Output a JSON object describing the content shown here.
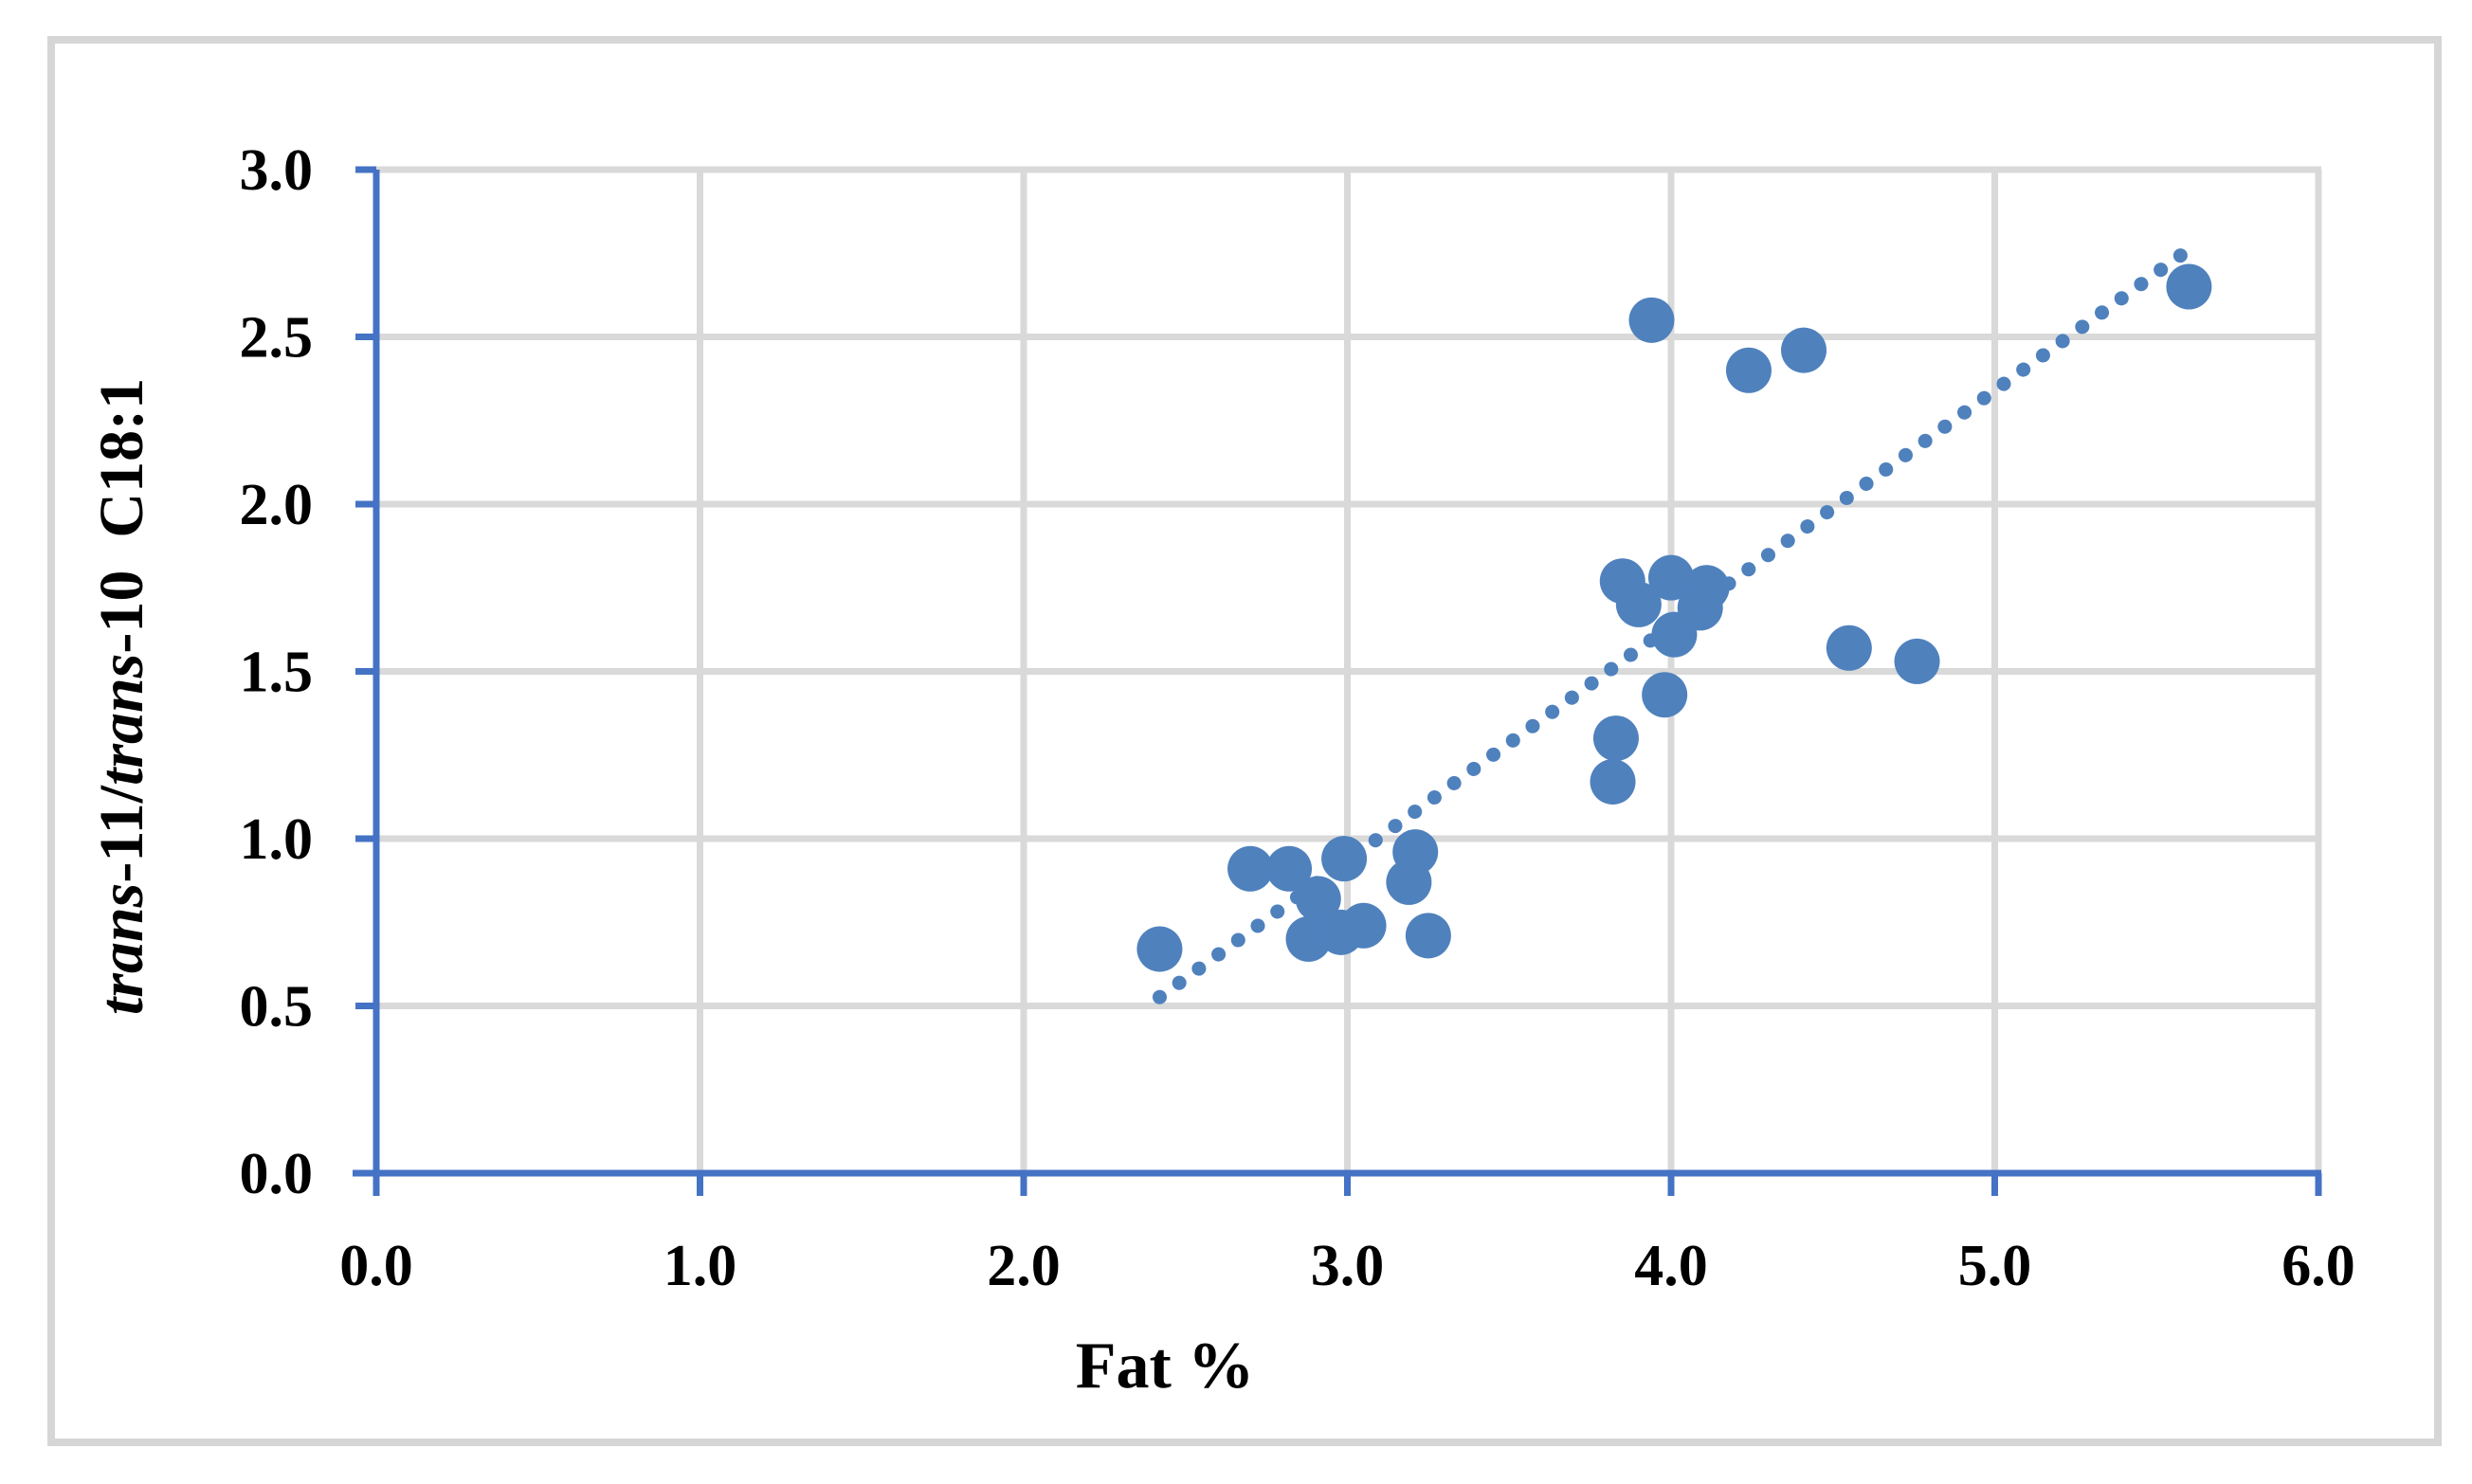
{
  "figure": {
    "background": "#FFFFFF",
    "border_color": "#D6D6D6"
  },
  "chart_data": {
    "type": "scatter",
    "title": "",
    "xlabel": "Fat %",
    "ylabel": "trans-11/trans-10 C18:1",
    "ylabel_parts": [
      {
        "text": "trans",
        "italic": true
      },
      {
        "text": "-11/",
        "italic": false
      },
      {
        "text": "trans",
        "italic": true
      },
      {
        "text": "-10",
        "italic": false
      },
      {
        "text": "C18:1",
        "italic": false
      }
    ],
    "xlim": [
      0.0,
      6.0
    ],
    "ylim": [
      0.0,
      3.0
    ],
    "x_tick_step": 1.0,
    "y_tick_step": 0.5,
    "x_ticks": [
      "0.0",
      "1.0",
      "2.0",
      "3.0",
      "4.0",
      "5.0",
      "6.0"
    ],
    "y_ticks": [
      "0.0",
      "0.5",
      "1.0",
      "1.5",
      "2.0",
      "2.5",
      "3.0"
    ],
    "grid": true,
    "legend": "none",
    "points": [
      [
        2.42,
        0.67
      ],
      [
        2.7,
        0.91
      ],
      [
        2.82,
        0.91
      ],
      [
        2.91,
        0.82
      ],
      [
        2.99,
        0.94
      ],
      [
        2.88,
        0.7
      ],
      [
        2.98,
        0.72
      ],
      [
        3.05,
        0.74
      ],
      [
        3.19,
        0.87
      ],
      [
        3.21,
        0.96
      ],
      [
        3.25,
        0.71
      ],
      [
        3.82,
        1.17
      ],
      [
        3.83,
        1.3
      ],
      [
        3.98,
        1.43
      ],
      [
        4.01,
        1.61
      ],
      [
        3.85,
        1.77
      ],
      [
        3.9,
        1.7
      ],
      [
        4.0,
        1.78
      ],
      [
        4.09,
        1.69
      ],
      [
        4.11,
        1.75
      ],
      [
        3.94,
        2.55
      ],
      [
        4.24,
        2.4
      ],
      [
        4.41,
        2.46
      ],
      [
        4.55,
        1.57
      ],
      [
        4.76,
        1.53
      ],
      [
        5.6,
        2.65
      ]
    ],
    "trendline": {
      "style": "dotted",
      "slope": 0.703,
      "intercept": -1.175,
      "x_range": [
        2.42,
        5.58
      ]
    },
    "colors": {
      "marker": "#4F81BD",
      "trendline": "#4F81BD",
      "axis": "#4472C4",
      "gridline": "#D9D9D9"
    }
  }
}
